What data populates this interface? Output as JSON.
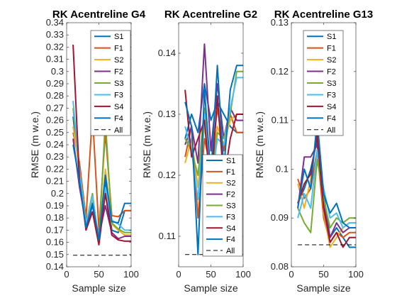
{
  "figure": {
    "colors": {
      "S1": "#0072BD",
      "F1": "#D95319",
      "S2": "#EDB120",
      "F2": "#7E2F8E",
      "S3": "#77AC30",
      "F3": "#4DBEEE",
      "S4": "#A2142F",
      "F4": "#0072BD",
      "All": "#000000"
    }
  },
  "chart_data": [
    {
      "type": "line",
      "title": "RK Acentreline G4",
      "xlabel": "Sample size",
      "ylabel": "RMSE (m w.e.)",
      "xlim": [
        0,
        100
      ],
      "ylim": [
        0.14,
        0.34
      ],
      "xticks": [
        0,
        50,
        100
      ],
      "yticks": [
        0.14,
        0.15,
        0.16,
        0.17,
        0.18,
        0.19,
        0.2,
        0.21,
        0.22,
        0.23,
        0.24,
        0.25,
        0.26,
        0.27,
        0.28,
        0.29,
        0.3,
        0.31,
        0.32,
        0.33,
        0.34
      ],
      "ytick_labels": [
        "0.14",
        "0.15",
        "0.16",
        "0.17",
        "0.18",
        "0.19",
        "0.2",
        "0.21",
        "0.22",
        "0.23",
        "0.24",
        "0.25",
        "0.26",
        "0.27",
        "0.28",
        "0.29",
        "0.3",
        "0.31",
        "0.32",
        "0.33",
        "0.34"
      ],
      "legend_position": "top-right",
      "x": [
        10,
        20,
        30,
        40,
        50,
        60,
        70,
        80,
        90,
        100
      ],
      "series": [
        {
          "name": "S1",
          "values": [
            0.263,
            0.215,
            0.172,
            0.19,
            0.165,
            0.21,
            0.17,
            0.168,
            0.186,
            0.186
          ]
        },
        {
          "name": "F1",
          "values": [
            0.25,
            0.225,
            0.18,
            0.265,
            0.17,
            0.25,
            0.182,
            0.181,
            0.186,
            0.186
          ]
        },
        {
          "name": "S2",
          "values": [
            0.255,
            0.22,
            0.175,
            0.195,
            0.16,
            0.22,
            0.175,
            0.17,
            0.166,
            0.166
          ]
        },
        {
          "name": "F2",
          "values": [
            0.245,
            0.205,
            0.175,
            0.185,
            0.165,
            0.19,
            0.168,
            0.163,
            0.165,
            0.165
          ]
        },
        {
          "name": "S3",
          "values": [
            0.27,
            0.22,
            0.175,
            0.2,
            0.16,
            0.26,
            0.176,
            0.171,
            0.168,
            0.168
          ]
        },
        {
          "name": "F3",
          "values": [
            0.276,
            0.218,
            0.175,
            0.198,
            0.162,
            0.205,
            0.178,
            0.175,
            0.17,
            0.17
          ]
        },
        {
          "name": "S4",
          "values": [
            0.322,
            0.21,
            0.17,
            0.185,
            0.158,
            0.2,
            0.166,
            0.162,
            0.161,
            0.161
          ]
        },
        {
          "name": "F4",
          "values": [
            0.24,
            0.21,
            0.172,
            0.192,
            0.162,
            0.215,
            0.177,
            0.176,
            0.192,
            0.192
          ]
        },
        {
          "name": "All",
          "values": [
            0.1495,
            0.1495,
            0.1495,
            0.1495,
            0.1495,
            0.1495,
            0.1495,
            0.1495,
            0.1495,
            0.1495
          ],
          "style": "dashed"
        }
      ]
    },
    {
      "type": "line",
      "title": "RK Acentreline G2",
      "xlabel": "Sample size",
      "ylabel": "RMSE (m w.e.)",
      "xlim": [
        0,
        100
      ],
      "ylim": [
        0.105,
        0.145
      ],
      "xticks": [
        0,
        50,
        100
      ],
      "yticks": [
        0.11,
        0.12,
        0.13,
        0.14
      ],
      "ytick_labels": [
        "0.11",
        "0.12",
        "0.13",
        "0.14"
      ],
      "legend_position": "bottom-right",
      "x": [
        10,
        20,
        30,
        40,
        50,
        60,
        70,
        80,
        90,
        100
      ],
      "series": [
        {
          "name": "S1",
          "values": [
            0.126,
            0.13,
            0.127,
            0.135,
            0.129,
            0.132,
            0.13,
            0.128,
            0.127,
            0.127
          ]
        },
        {
          "name": "F1",
          "values": [
            0.123,
            0.128,
            0.113,
            0.126,
            0.121,
            0.131,
            0.124,
            0.13,
            0.127,
            0.127
          ]
        },
        {
          "name": "S2",
          "values": [
            0.122,
            0.126,
            0.118,
            0.128,
            0.12,
            0.128,
            0.125,
            0.129,
            0.13,
            0.13
          ]
        },
        {
          "name": "F2",
          "values": [
            0.125,
            0.128,
            0.122,
            0.1415,
            0.124,
            0.135,
            0.126,
            0.131,
            0.129,
            0.129
          ]
        },
        {
          "name": "S3",
          "values": [
            0.126,
            0.124,
            0.12,
            0.131,
            0.119,
            0.127,
            0.126,
            0.13,
            0.137,
            0.137
          ]
        },
        {
          "name": "F3",
          "values": [
            0.128,
            0.124,
            0.116,
            0.13,
            0.118,
            0.126,
            0.125,
            0.131,
            0.136,
            0.136
          ]
        },
        {
          "name": "S4",
          "values": [
            0.134,
            0.123,
            0.126,
            0.129,
            0.117,
            0.133,
            0.119,
            0.126,
            0.13,
            0.13
          ]
        },
        {
          "name": "F4",
          "values": [
            0.132,
            0.128,
            0.107,
            0.134,
            0.12,
            0.138,
            0.121,
            0.134,
            0.138,
            0.138
          ]
        },
        {
          "name": "All",
          "values": [
            0.107,
            0.107,
            0.107,
            0.107,
            0.107,
            0.107,
            0.107,
            0.107,
            0.107,
            0.107
          ],
          "style": "dashed"
        }
      ]
    },
    {
      "type": "line",
      "title": "RK Acentreline G13",
      "xlabel": "Sample size",
      "ylabel": "RMSE (m w.e.)",
      "xlim": [
        0,
        100
      ],
      "ylim": [
        0.08,
        0.13
      ],
      "xticks": [
        0,
        50,
        100
      ],
      "yticks": [
        0.08,
        0.09,
        0.1,
        0.11,
        0.12,
        0.13
      ],
      "ytick_labels": [
        "0.08",
        "0.09",
        "0.1",
        "0.11",
        "0.12",
        "0.13"
      ],
      "legend_position": "top-right",
      "x": [
        10,
        20,
        30,
        40,
        50,
        60,
        70,
        80,
        90,
        100
      ],
      "series": [
        {
          "name": "S1",
          "values": [
            0.093,
            0.096,
            0.1,
            0.106,
            0.095,
            0.086,
            0.088,
            0.086,
            0.084,
            0.084
          ]
        },
        {
          "name": "F1",
          "values": [
            0.098,
            0.094,
            0.096,
            0.104,
            0.09,
            0.085,
            0.087,
            0.086,
            0.087,
            0.087
          ]
        },
        {
          "name": "S2",
          "values": [
            0.097,
            0.092,
            0.098,
            0.108,
            0.091,
            0.084,
            0.086,
            0.088,
            0.089,
            0.089
          ]
        },
        {
          "name": "F2",
          "values": [
            0.092,
            0.1025,
            0.1025,
            0.105,
            0.093,
            0.086,
            0.089,
            0.087,
            0.088,
            0.088
          ]
        },
        {
          "name": "S3",
          "values": [
            0.092,
            0.089,
            0.087,
            0.102,
            0.094,
            0.088,
            0.09,
            0.089,
            0.09,
            0.09
          ]
        },
        {
          "name": "F3",
          "values": [
            0.09,
            0.095,
            0.092,
            0.104,
            0.096,
            0.09,
            0.091,
            0.088,
            0.089,
            0.089
          ]
        },
        {
          "name": "S4",
          "values": [
            0.093,
            0.097,
            0.099,
            0.107,
            0.092,
            0.085,
            0.087,
            0.084,
            0.086,
            0.086
          ]
        },
        {
          "name": "F4",
          "values": [
            0.092,
            0.1,
            0.096,
            0.11,
            0.095,
            0.091,
            0.093,
            0.089,
            0.088,
            0.088
          ]
        },
        {
          "name": "All",
          "values": [
            0.0845,
            0.0845,
            0.0845,
            0.0845,
            0.0845,
            0.0845,
            0.0845,
            0.0845,
            0.0845,
            0.0845
          ],
          "style": "dashed"
        }
      ]
    }
  ]
}
